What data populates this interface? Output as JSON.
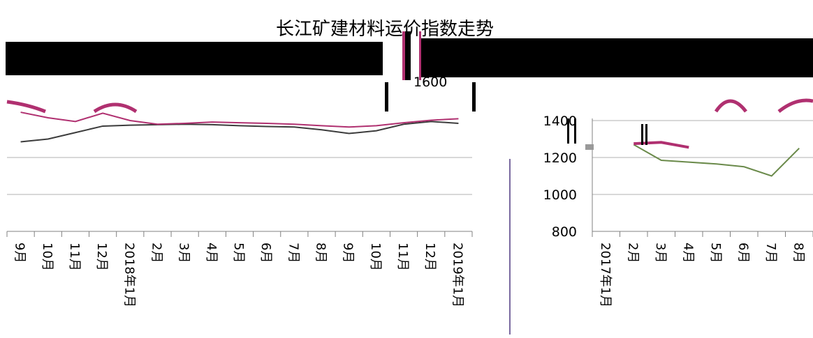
{
  "chart_data": [
    {
      "type": "line",
      "title": "",
      "categories": [
        "9月",
        "10月",
        "11月",
        "12月",
        "2018年1月",
        "2月",
        "3月",
        "4月",
        "5月",
        "6月",
        "7月",
        "8月",
        "9月",
        "10月",
        "11月",
        "12月",
        "2019年1月"
      ],
      "series": [
        {
          "values": [
            1285,
            1300,
            1335,
            1370,
            1375,
            1378,
            1380,
            1378,
            1372,
            1368,
            1365,
            1350,
            1330,
            1345,
            1380,
            1395,
            1385
          ],
          "color": "#3c3c3c"
        },
        {
          "values": [
            1445,
            1415,
            1395,
            1440,
            1400,
            1380,
            1385,
            1392,
            1388,
            1385,
            1380,
            1372,
            1365,
            1372,
            1388,
            1402,
            1410
          ],
          "color": "#b03070"
        }
      ],
      "colors": {
        "accent": "#b03070",
        "neutral": "#3c3c3c"
      }
    },
    {
      "type": "line",
      "title": "",
      "categories": [
        "2017年1月",
        "2月",
        "3月",
        "4月",
        "5月",
        "6月",
        "7月",
        "8月"
      ],
      "yticks": [
        "1400",
        "1200",
        "1000",
        "800"
      ],
      "ylim": [
        800,
        1600
      ],
      "series": [
        {
          "values": [
            null,
            1270,
            1185,
            1175,
            1165,
            1150,
            1100,
            1250
          ],
          "color": "#6a8a4a"
        },
        {
          "values": [
            null,
            1275,
            1282,
            1255,
            null,
            null,
            null,
            null
          ],
          "color": "#b03070"
        }
      ],
      "colors": {
        "accent": "#b03070",
        "green": "#6a8a4a"
      }
    }
  ],
  "overlay": {
    "title_fragment": "长江矿建材料运价指数走势",
    "floating_tick": "1600"
  }
}
